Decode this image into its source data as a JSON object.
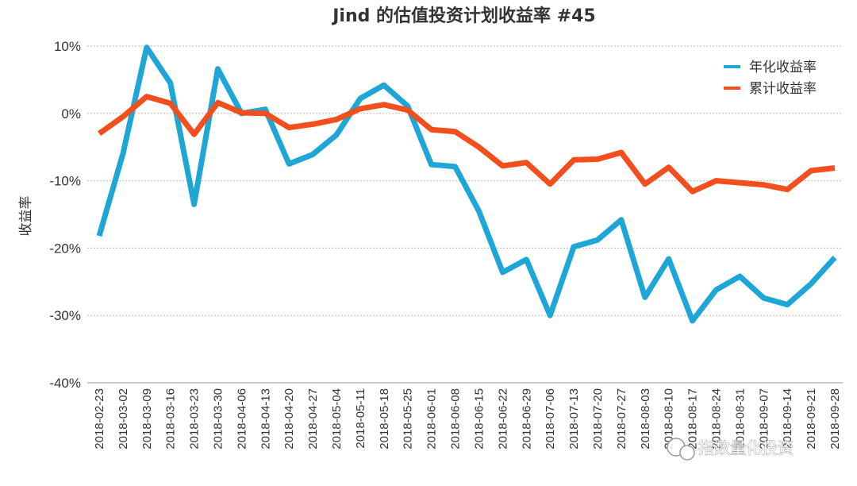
{
  "chart_data": {
    "type": "line",
    "title": "Jind 的估值投资计划收益率 #45",
    "ylabel": "收益率",
    "ylim": [
      -0.4,
      0.1
    ],
    "yticks": [
      {
        "value": 0.1,
        "label": "10%"
      },
      {
        "value": 0.0,
        "label": "0%"
      },
      {
        "value": -0.1,
        "label": "-10%"
      },
      {
        "value": -0.2,
        "label": "-20%"
      },
      {
        "value": -0.3,
        "label": "-30%"
      },
      {
        "value": -0.4,
        "label": "-40%"
      }
    ],
    "grid": true,
    "legend_position": "top-right",
    "categories": [
      "2018-02-23",
      "2018-03-02",
      "2018-03-09",
      "2018-03-16",
      "2018-03-23",
      "2018-03-30",
      "2018-04-06",
      "2018-04-13",
      "2018-04-20",
      "2018-04-27",
      "2018-05-04",
      "2018-05-11",
      "2018-05-18",
      "2018-05-25",
      "2018-06-01",
      "2018-06-08",
      "2018-06-15",
      "2018-06-22",
      "2018-06-29",
      "2018-07-06",
      "2018-07-13",
      "2018-07-20",
      "2018-07-27",
      "2018-08-03",
      "2018-08-10",
      "2018-08-17",
      "2018-08-24",
      "2018-08-31",
      "2018-09-07",
      "2018-09-14",
      "2018-09-21",
      "2018-09-28"
    ],
    "series": [
      {
        "name": "年化收益率",
        "color": "#1ea6d6",
        "values": [
          -0.182,
          -0.06,
          0.098,
          0.045,
          -0.135,
          0.066,
          0.0,
          0.006,
          -0.075,
          -0.061,
          -0.032,
          0.022,
          0.042,
          0.011,
          -0.076,
          -0.079,
          -0.145,
          -0.236,
          -0.217,
          -0.3,
          -0.198,
          -0.188,
          -0.158,
          -0.273,
          -0.216,
          -0.308,
          -0.262,
          -0.242,
          -0.274,
          -0.284,
          -0.253,
          -0.214
        ]
      },
      {
        "name": "累计收益率",
        "color": "#f24e1e",
        "values": [
          -0.03,
          -0.005,
          0.025,
          0.015,
          -0.031,
          0.016,
          0.001,
          0.0,
          -0.021,
          -0.016,
          -0.009,
          0.007,
          0.013,
          0.005,
          -0.024,
          -0.027,
          -0.05,
          -0.078,
          -0.073,
          -0.105,
          -0.069,
          -0.068,
          -0.058,
          -0.105,
          -0.08,
          -0.116,
          -0.1,
          -0.103,
          -0.106,
          -0.113,
          -0.085,
          -0.081
        ]
      }
    ]
  },
  "watermark": "指数量化投资"
}
